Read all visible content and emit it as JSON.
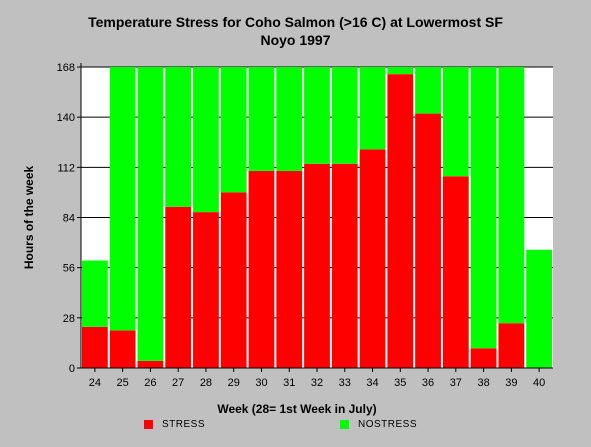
{
  "chart_data": {
    "type": "bar",
    "stacked": true,
    "title": "Temperature Stress for Coho Salmon (>16 C) at Lowermost SF",
    "subtitle": "Noyo 1997",
    "xlabel": "Week (28= 1st Week in July)",
    "ylabel": "Hours of the week",
    "ylim": [
      0,
      168
    ],
    "yticks": [
      0,
      28,
      56,
      84,
      112,
      140,
      168
    ],
    "grid": true,
    "legend_position": "bottom",
    "categories": [
      "24",
      "25",
      "26",
      "27",
      "28",
      "29",
      "30",
      "31",
      "32",
      "33",
      "34",
      "35",
      "36",
      "37",
      "38",
      "39",
      "40"
    ],
    "series": [
      {
        "name": "STRESS",
        "color": "#ff0000",
        "values": [
          23,
          21,
          4,
          90,
          87,
          98,
          110,
          110,
          114,
          114,
          122,
          164,
          142,
          107,
          11,
          25,
          0
        ]
      },
      {
        "name": "NOSTRESS",
        "color": "#00ff00",
        "values": [
          37,
          147,
          164,
          78,
          81,
          70,
          58,
          58,
          54,
          54,
          46,
          4,
          26,
          61,
          157,
          143,
          66
        ]
      }
    ]
  }
}
